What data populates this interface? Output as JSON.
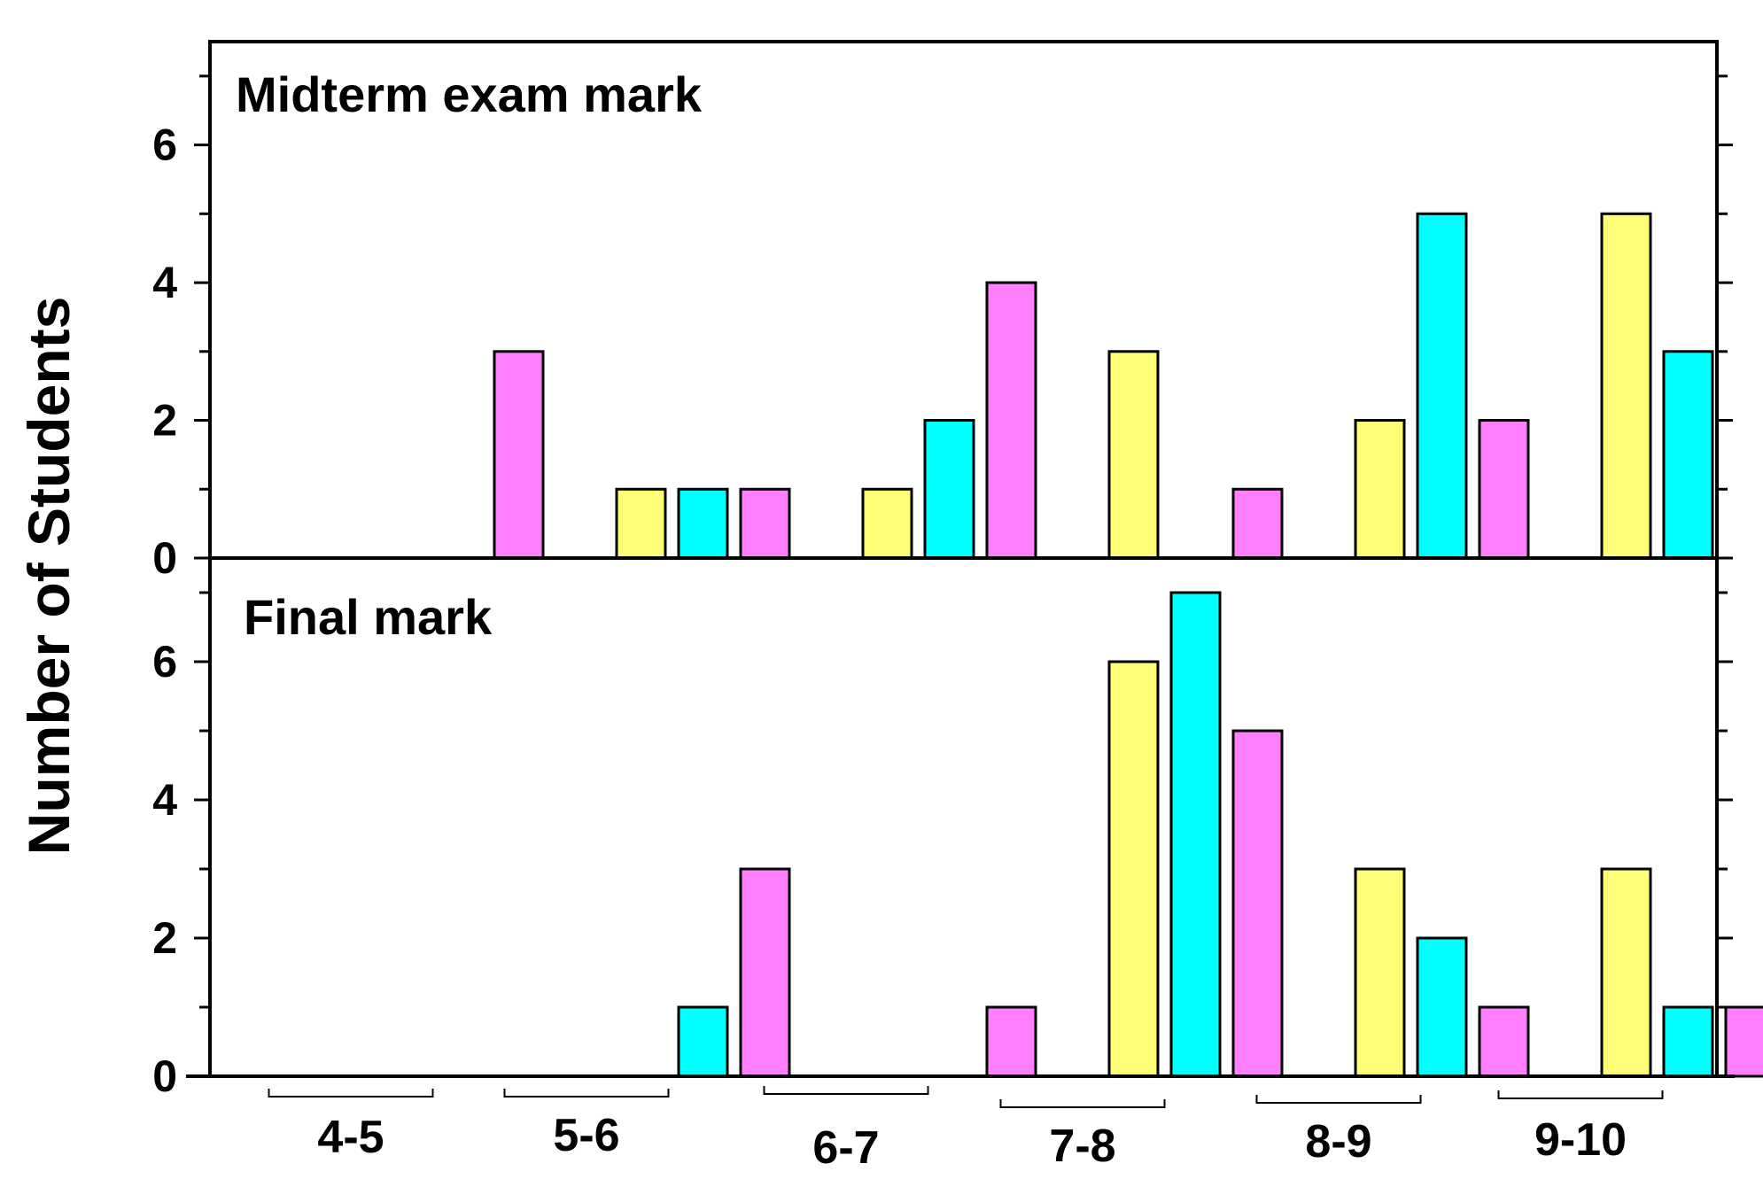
{
  "chart_data": [
    {
      "type": "bar",
      "title": "Midterm exam mark",
      "categories": [
        "4-5",
        "5-6",
        "6-7",
        "7-8",
        "8-9",
        "9-10"
      ],
      "series": [
        {
          "color": "#ffff77",
          "values": [
            0,
            1,
            1,
            3,
            2,
            5
          ]
        },
        {
          "color": "#00ffff",
          "values": [
            0,
            1,
            2,
            0,
            5,
            3
          ]
        },
        {
          "color": "#ff7fff",
          "values": [
            3,
            1,
            4,
            1,
            2,
            0
          ]
        }
      ],
      "ylabel": "Number of Students",
      "ylim": [
        0,
        7.5
      ],
      "yticks": [
        0,
        2,
        4,
        6
      ],
      "grid": false
    },
    {
      "type": "bar",
      "title": "Final mark",
      "categories": [
        "4-5",
        "5-6",
        "6-7",
        "7-8",
        "8-9",
        "9-10"
      ],
      "series": [
        {
          "color": "#ffff77",
          "values": [
            0,
            0,
            0,
            6,
            3,
            3
          ]
        },
        {
          "color": "#00ffff",
          "values": [
            0,
            1,
            0,
            7,
            2,
            1
          ]
        },
        {
          "color": "#ff7fff",
          "values": [
            0,
            3,
            1,
            5,
            1,
            1
          ]
        }
      ],
      "ylabel": "Number of Students",
      "ylim": [
        0,
        7.5
      ],
      "yticks": [
        0,
        2,
        4,
        6
      ],
      "grid": false
    }
  ],
  "ylabel": "Number of Students"
}
